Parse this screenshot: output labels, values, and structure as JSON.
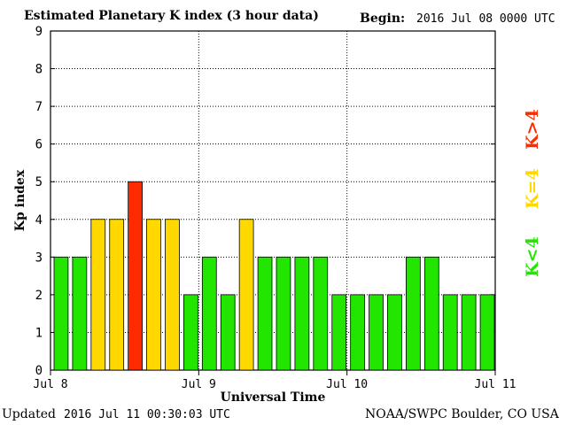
{
  "header": {
    "title": "Estimated Planetary K index (3 hour data)",
    "begin_label": "Begin:",
    "begin_value": "2016 Jul 08 0000 UTC"
  },
  "footer": {
    "updated_label": "Updated",
    "updated_value": "2016 Jul 11 00:30:03 UTC",
    "credit": "NOAA/SWPC Boulder, CO USA"
  },
  "legend": {
    "above": {
      "label": "K>4",
      "color": "#ff2a00"
    },
    "equal": {
      "label": "K=4",
      "color": "#ffd800"
    },
    "below": {
      "label": "K<4",
      "color": "#22e600"
    }
  },
  "chart_data": {
    "type": "bar",
    "title": "Estimated Planetary K index (3 hour data)",
    "xlabel": "Universal Time",
    "ylabel": "Kp index",
    "ylim": [
      0,
      9
    ],
    "yticks": [
      0,
      1,
      2,
      3,
      4,
      5,
      6,
      7,
      8,
      9
    ],
    "xticks": [
      "Jul 8",
      "Jul 9",
      "Jul 10",
      "Jul 11"
    ],
    "grid": true,
    "interval_hours": 3,
    "values": [
      3,
      3,
      4,
      4,
      5,
      4,
      4,
      2,
      3,
      2,
      4,
      3,
      3,
      3,
      3,
      2,
      2,
      2,
      2,
      3,
      3,
      2,
      2,
      2
    ],
    "colors": {
      "below": "#22e600",
      "equal": "#ffd800",
      "above": "#ff2a00"
    }
  }
}
